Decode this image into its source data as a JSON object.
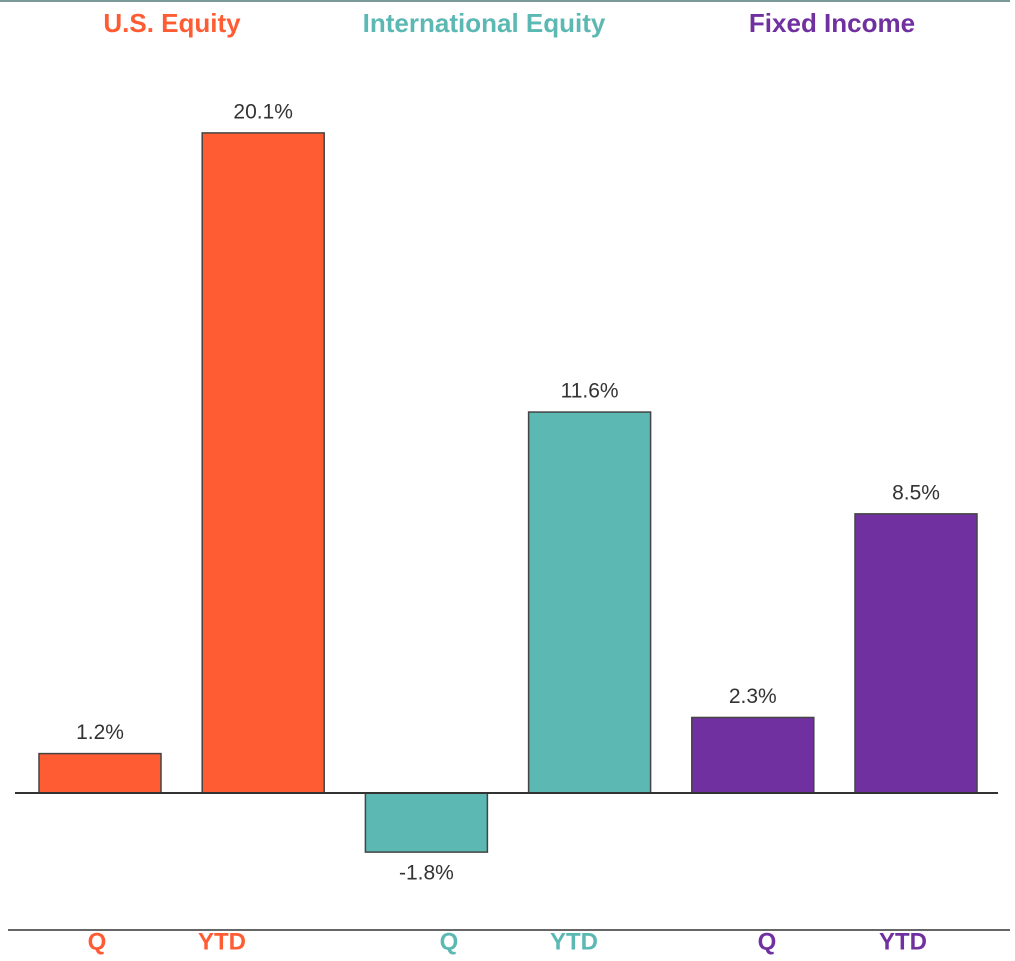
{
  "chart_data": {
    "type": "bar",
    "categories": [
      "Q",
      "YTD"
    ],
    "series": [
      {
        "name": "U.S. Equity",
        "color": "#ff5c33",
        "values": [
          1.2,
          20.1
        ],
        "value_labels": [
          "1.2%",
          "20.1%"
        ]
      },
      {
        "name": "International Equity",
        "color": "#5bb8b3",
        "values": [
          -1.8,
          11.6
        ],
        "value_labels": [
          "-1.8%",
          "11.6%"
        ]
      },
      {
        "name": "Fixed Income",
        "color": "#7030a0",
        "values": [
          2.3,
          8.5
        ],
        "value_labels": [
          "2.3%",
          "8.5%"
        ]
      }
    ]
  }
}
